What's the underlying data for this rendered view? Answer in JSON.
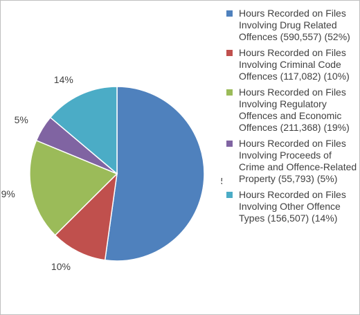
{
  "chart_data": {
    "type": "pie",
    "title": "",
    "slices": [
      {
        "label": "Hours Recorded on Files Involving Drug Related Offences (590,557) (52%)",
        "value": 590557,
        "percent_label": "52%",
        "color": "#4F81BD"
      },
      {
        "label": "Hours Recorded on Files Involving Criminal Code Offences (117,082) (10%)",
        "value": 117082,
        "percent_label": "10%",
        "color": "#C0504D"
      },
      {
        "label": "Hours Recorded on Files Involving Regulatory Offences and Economic Offences (211,368) (19%)",
        "value": 211368,
        "percent_label": "19%",
        "color": "#9BBB59"
      },
      {
        "label": "Hours Recorded on Files Involving Proceeds of Crime and Offence-Related Property (55,793) (5%)",
        "value": 55793,
        "percent_label": "5%",
        "color": "#8064A2"
      },
      {
        "label": "Hours Recorded on Files Involving Other Offence Types (156,507) (14%)",
        "value": 156507,
        "percent_label": "14%",
        "color": "#4BACC6"
      }
    ],
    "legend_position": "right"
  }
}
